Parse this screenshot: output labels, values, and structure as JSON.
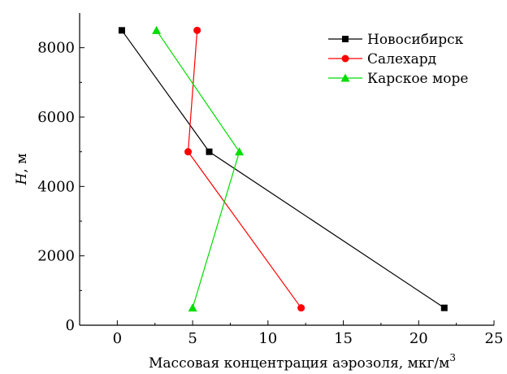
{
  "chart_data": {
    "type": "line",
    "title": "",
    "xlabel": "Массовая концентрация аэрозоля, мкг/м",
    "xlabel_superscript": "3",
    "ylabel": {
      "italic": "H",
      "rest": ", м"
    },
    "xlim": [
      -2.5,
      25
    ],
    "ylim": [
      0,
      9000
    ],
    "xticks": [
      0,
      5,
      10,
      15,
      20,
      25
    ],
    "xtick_labels": [
      "0",
      "5",
      "10",
      "15",
      "20",
      "25"
    ],
    "yticks": [
      0,
      2000,
      4000,
      6000,
      8000
    ],
    "ytick_labels": [
      "0",
      "2000",
      "4000",
      "6000",
      "8000"
    ],
    "grid": false,
    "legend_position": "top-right",
    "series": [
      {
        "name": "Новосибирск",
        "color": "#000000",
        "marker": "square",
        "x": [
          0.3,
          6.1,
          21.7
        ],
        "y": [
          8500,
          5000,
          500
        ]
      },
      {
        "name": "Салехард",
        "color": "#ff0000",
        "marker": "circle",
        "x": [
          5.3,
          4.7,
          12.2
        ],
        "y": [
          8500,
          5000,
          500
        ]
      },
      {
        "name": "Карское море",
        "color": "#00dd00",
        "marker": "triangle",
        "x": [
          2.6,
          8.1,
          5.0
        ],
        "y": [
          8500,
          5000,
          500
        ]
      }
    ]
  }
}
